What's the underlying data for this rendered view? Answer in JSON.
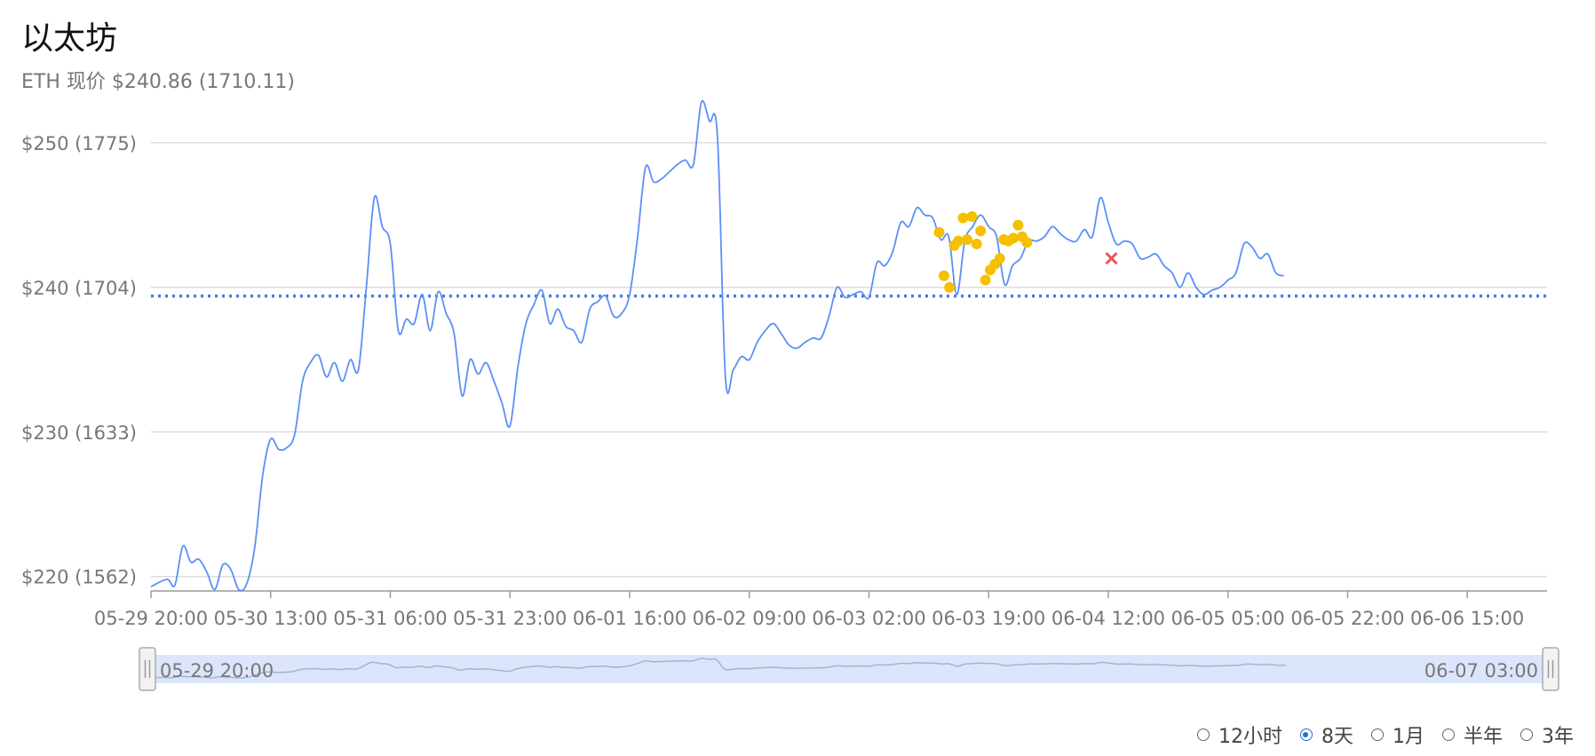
{
  "header": {
    "title": "以太坊",
    "subtitle": "ETH 现价 $240.86 (1710.11)"
  },
  "chart_data": {
    "type": "line",
    "title": "以太坊",
    "subtitle": "ETH 现价 $240.86 (1710.11)",
    "ylim": [
      219,
      253
    ],
    "y_ticks": [
      {
        "value": 220,
        "label": "$220 (1562)"
      },
      {
        "value": 230,
        "label": "$230 (1633)"
      },
      {
        "value": 240,
        "label": "$240 (1704)"
      },
      {
        "value": 250,
        "label": "$250 (1775)"
      }
    ],
    "x_ticks": [
      "05-29 20:00",
      "05-30 13:00",
      "05-31 06:00",
      "05-31 23:00",
      "06-01 16:00",
      "06-02 09:00",
      "06-03 02:00",
      "06-03 19:00",
      "06-04 12:00",
      "06-05 05:00",
      "06-05 22:00",
      "06-06 15:00"
    ],
    "x_range": {
      "start": "05-29 20:00",
      "end": "06-07 03:00",
      "hours": 175
    },
    "grid": true,
    "reference_line": {
      "value": 239.4,
      "style": "dotted",
      "color": "#4a7be0"
    },
    "series": [
      {
        "color": "#5b8ff9",
        "points": [
          [
            0,
            219.3
          ],
          [
            2,
            219.8
          ],
          [
            3,
            219.4
          ],
          [
            4,
            222.1
          ],
          [
            5,
            221.0
          ],
          [
            6,
            221.2
          ],
          [
            7,
            220.3
          ],
          [
            8,
            219.1
          ],
          [
            9,
            220.8
          ],
          [
            10,
            220.5
          ],
          [
            11,
            219.1
          ],
          [
            12,
            219.5
          ],
          [
            13,
            222.0
          ],
          [
            14,
            227.0
          ],
          [
            15,
            229.5
          ],
          [
            16,
            228.8
          ],
          [
            17,
            228.9
          ],
          [
            18,
            229.8
          ],
          [
            19,
            233.5
          ],
          [
            20,
            234.8
          ],
          [
            21,
            235.3
          ],
          [
            22,
            233.8
          ],
          [
            23,
            234.8
          ],
          [
            24,
            233.5
          ],
          [
            25,
            235.0
          ],
          [
            26,
            234.3
          ],
          [
            27,
            240.0
          ],
          [
            28,
            246.2
          ],
          [
            29,
            244.2
          ],
          [
            30,
            243.0
          ],
          [
            31,
            237.0
          ],
          [
            32,
            237.8
          ],
          [
            33,
            237.5
          ],
          [
            34,
            239.5
          ],
          [
            35,
            237.0
          ],
          [
            36,
            239.7
          ],
          [
            37,
            238.2
          ],
          [
            38,
            236.8
          ],
          [
            39,
            232.5
          ],
          [
            40,
            235.0
          ],
          [
            41,
            234.0
          ],
          [
            42,
            234.8
          ],
          [
            43,
            233.5
          ],
          [
            44,
            232.0
          ],
          [
            45,
            230.4
          ],
          [
            46,
            234.5
          ],
          [
            47,
            237.5
          ],
          [
            48,
            238.8
          ],
          [
            49,
            239.8
          ],
          [
            50,
            237.5
          ],
          [
            51,
            238.5
          ],
          [
            52,
            237.3
          ],
          [
            53,
            237.0
          ],
          [
            54,
            236.2
          ],
          [
            55,
            238.5
          ],
          [
            56,
            239.0
          ],
          [
            57,
            239.4
          ],
          [
            58,
            238.0
          ],
          [
            59,
            238.2
          ],
          [
            60,
            239.5
          ],
          [
            61,
            243.5
          ],
          [
            62,
            248.3
          ],
          [
            63,
            247.3
          ],
          [
            64,
            247.5
          ],
          [
            65,
            248.0
          ],
          [
            66,
            248.5
          ],
          [
            67,
            248.8
          ],
          [
            68,
            248.5
          ],
          [
            69,
            252.8
          ],
          [
            70,
            251.5
          ],
          [
            71,
            250.5
          ],
          [
            72,
            233.8
          ],
          [
            73,
            234.3
          ],
          [
            74,
            235.2
          ],
          [
            75,
            235.0
          ],
          [
            76,
            236.2
          ],
          [
            77,
            237.0
          ],
          [
            78,
            237.5
          ],
          [
            79,
            236.8
          ],
          [
            80,
            236.0
          ],
          [
            81,
            235.8
          ],
          [
            82,
            236.2
          ],
          [
            83,
            236.5
          ],
          [
            84,
            236.5
          ],
          [
            85,
            238.0
          ],
          [
            86,
            240.0
          ],
          [
            87,
            239.3
          ],
          [
            88,
            239.5
          ],
          [
            89,
            239.7
          ],
          [
            90,
            239.3
          ],
          [
            91,
            241.7
          ],
          [
            92,
            241.5
          ],
          [
            93,
            242.5
          ],
          [
            94,
            244.5
          ],
          [
            95,
            244.2
          ],
          [
            96,
            245.5
          ],
          [
            97,
            245.0
          ],
          [
            98,
            244.8
          ],
          [
            99,
            243.3
          ],
          [
            100,
            243.5
          ],
          [
            101,
            239.5
          ],
          [
            102,
            243.2
          ],
          [
            103,
            244.2
          ],
          [
            104,
            245.0
          ],
          [
            105,
            244.2
          ],
          [
            106,
            243.5
          ],
          [
            107,
            240.2
          ],
          [
            108,
            241.5
          ],
          [
            109,
            242.0
          ],
          [
            110,
            243.2
          ],
          [
            111,
            243.2
          ],
          [
            112,
            243.5
          ],
          [
            113,
            244.2
          ],
          [
            114,
            243.7
          ],
          [
            115,
            243.3
          ],
          [
            116,
            243.2
          ],
          [
            117,
            244.0
          ],
          [
            118,
            243.5
          ],
          [
            119,
            246.2
          ],
          [
            120,
            244.5
          ],
          [
            121,
            243.0
          ],
          [
            122,
            243.2
          ],
          [
            123,
            243.0
          ],
          [
            124,
            242.0
          ],
          [
            125,
            242.1
          ],
          [
            126,
            242.3
          ],
          [
            127,
            241.5
          ],
          [
            128,
            241.0
          ],
          [
            129,
            240.0
          ],
          [
            130,
            241.0
          ],
          [
            131,
            240.0
          ],
          [
            132,
            239.5
          ],
          [
            133,
            239.8
          ],
          [
            134,
            240.0
          ],
          [
            135,
            240.5
          ],
          [
            136,
            241.0
          ],
          [
            137,
            243.0
          ],
          [
            138,
            242.8
          ],
          [
            139,
            242.0
          ],
          [
            140,
            242.3
          ],
          [
            141,
            241.0
          ],
          [
            142,
            240.8
          ]
        ]
      }
    ],
    "markers": [
      {
        "type": "dot",
        "color": "#f5c000",
        "points": [
          [
            98.8,
            243.8
          ],
          [
            99.4,
            240.8
          ],
          [
            100.1,
            240.0
          ],
          [
            100.7,
            242.9
          ],
          [
            101.2,
            243.2
          ],
          [
            101.8,
            244.8
          ],
          [
            102.3,
            243.3
          ],
          [
            102.9,
            244.9
          ],
          [
            103.5,
            243.0
          ],
          [
            104.0,
            243.9
          ],
          [
            104.6,
            240.5
          ],
          [
            105.2,
            241.2
          ],
          [
            105.8,
            241.6
          ],
          [
            106.4,
            242.0
          ],
          [
            106.9,
            243.3
          ],
          [
            107.5,
            243.2
          ],
          [
            108.1,
            243.4
          ],
          [
            108.7,
            244.3
          ],
          [
            109.2,
            243.5
          ],
          [
            109.8,
            243.1
          ]
        ]
      },
      {
        "type": "cross",
        "color": "#e8575a",
        "points": [
          [
            120.4,
            242.0
          ]
        ]
      }
    ]
  },
  "navigator": {
    "start_label": "05-29 20:00",
    "end_label": "06-07 03:00"
  },
  "range_options": [
    {
      "label": "12小时",
      "selected": false
    },
    {
      "label": "8天",
      "selected": true
    },
    {
      "label": "1月",
      "selected": false
    },
    {
      "label": "半年",
      "selected": false
    },
    {
      "label": "3年",
      "selected": false
    }
  ]
}
